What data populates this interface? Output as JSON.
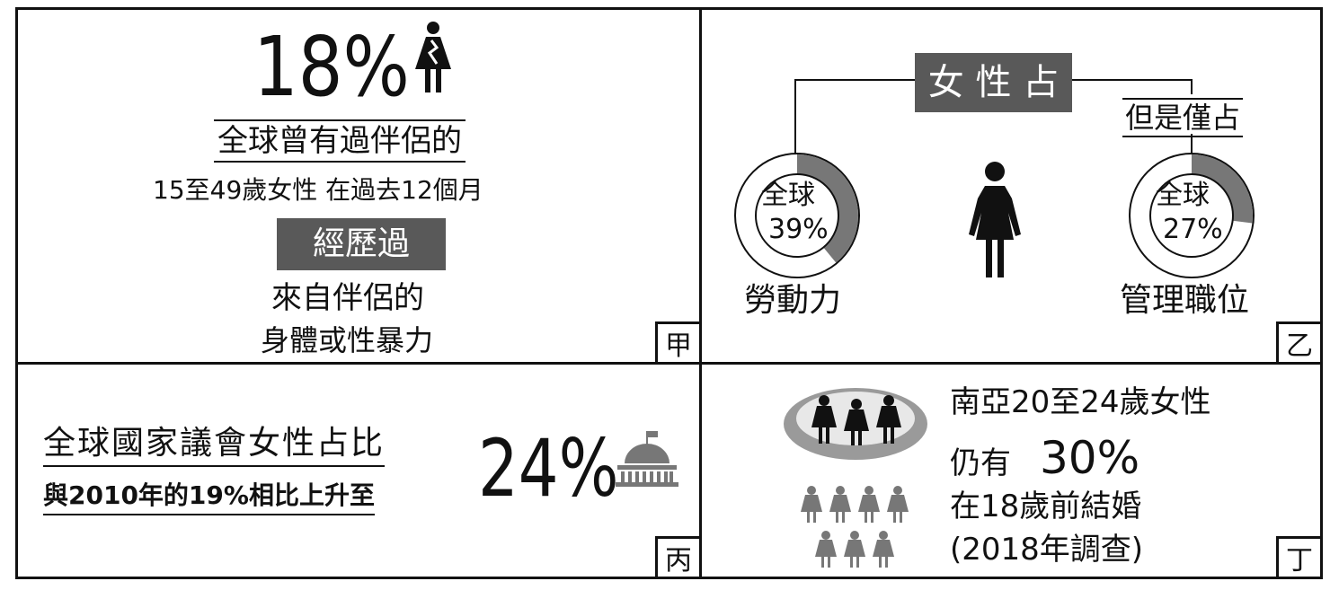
{
  "panel_a": {
    "percent": "18%",
    "line1": "全球曾有過伴侶的",
    "line2": "15至49歲女性  在過去12個月",
    "highlight": "經歷過",
    "line3": "來自伴侶的",
    "line4": "身體或性暴力",
    "corner": "甲"
  },
  "panel_b": {
    "title": "女 性 占",
    "sub_label": "但是僅占",
    "left_ring": {
      "line1": "全球",
      "line2": "39%",
      "fraction": 0.39
    },
    "right_ring": {
      "line1": "全球",
      "line2": "27%",
      "fraction": 0.27
    },
    "left_caption": "勞動力",
    "right_caption": "管理職位",
    "corner": "乙"
  },
  "panel_c": {
    "line1": "全球國家議會女性占比",
    "line2": "與2010年的19%相比上升至",
    "percent": "24%",
    "corner": "丙"
  },
  "panel_d": {
    "line1": "南亞20至24歲女性",
    "line2_prefix": "仍有",
    "line2_percent": "30%",
    "line3": "在18歲前結婚",
    "line4": "(2018年調查)",
    "corner": "丁"
  },
  "colors": {
    "dark_gray": "#595959",
    "ring_gray": "#777777",
    "ellipse_gray": "#9a9a9a"
  }
}
